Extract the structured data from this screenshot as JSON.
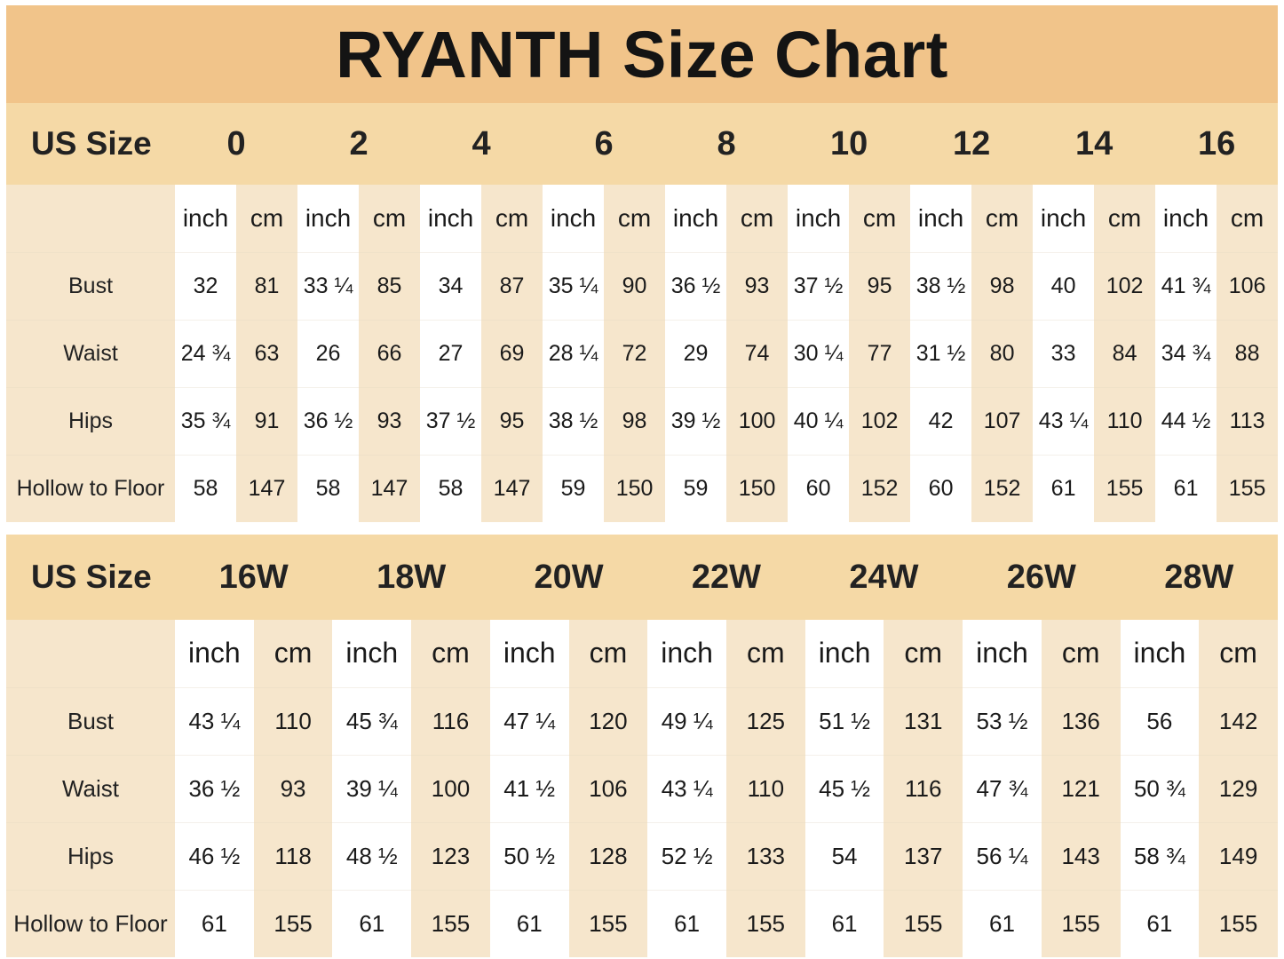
{
  "title": "RYANTH Size Chart",
  "tables": [
    {
      "id": "regular",
      "corner_label": "US Size",
      "sizes": [
        "0",
        "2",
        "4",
        "6",
        "8",
        "10",
        "12",
        "14",
        "16"
      ],
      "unit_labels": {
        "inch": "inch",
        "cm": "cm"
      },
      "rows": [
        {
          "label": "Bust",
          "inch": [
            "32",
            "33 ¼",
            "34",
            "35 ¼",
            "36 ½",
            "37 ½",
            "38 ½",
            "40",
            "41 ¾"
          ],
          "cm": [
            "81",
            "85",
            "87",
            "90",
            "93",
            "95",
            "98",
            "102",
            "106"
          ]
        },
        {
          "label": "Waist",
          "inch": [
            "24 ¾",
            "26",
            "27",
            "28 ¼",
            "29",
            "30 ¼",
            "31 ½",
            "33",
            "34 ¾"
          ],
          "cm": [
            "63",
            "66",
            "69",
            "72",
            "74",
            "77",
            "80",
            "84",
            "88"
          ]
        },
        {
          "label": "Hips",
          "inch": [
            "35 ¾",
            "36 ½",
            "37 ½",
            "38 ½",
            "39 ½",
            "40 ¼",
            "42",
            "43 ¼",
            "44 ½"
          ],
          "cm": [
            "91",
            "93",
            "95",
            "98",
            "100",
            "102",
            "107",
            "110",
            "113"
          ]
        },
        {
          "label": "Hollow to Floor",
          "inch": [
            "58",
            "58",
            "58",
            "59",
            "59",
            "60",
            "60",
            "61",
            "61"
          ],
          "cm": [
            "147",
            "147",
            "147",
            "150",
            "150",
            "152",
            "152",
            "155",
            "155"
          ]
        }
      ]
    },
    {
      "id": "plus",
      "corner_label": "US Size",
      "sizes": [
        "16W",
        "18W",
        "20W",
        "22W",
        "24W",
        "26W",
        "28W"
      ],
      "unit_labels": {
        "inch": "inch",
        "cm": "cm"
      },
      "rows": [
        {
          "label": "Bust",
          "inch": [
            "43 ¼",
            "45 ¾",
            "47 ¼",
            "49 ¼",
            "51 ½",
            "53 ½",
            "56"
          ],
          "cm": [
            "110",
            "116",
            "120",
            "125",
            "131",
            "136",
            "142"
          ]
        },
        {
          "label": "Waist",
          "inch": [
            "36 ½",
            "39 ¼",
            "41 ½",
            "43 ¼",
            "45 ½",
            "47 ¾",
            "50 ¾"
          ],
          "cm": [
            "93",
            "100",
            "106",
            "110",
            "116",
            "121",
            "129"
          ]
        },
        {
          "label": "Hips",
          "inch": [
            "46 ½",
            "48 ½",
            "50 ½",
            "52 ½",
            "54",
            "56 ¼",
            "58 ¾"
          ],
          "cm": [
            "118",
            "123",
            "128",
            "133",
            "137",
            "143",
            "149"
          ]
        },
        {
          "label": "Hollow to Floor",
          "inch": [
            "61",
            "61",
            "61",
            "61",
            "61",
            "61",
            "61"
          ],
          "cm": [
            "155",
            "155",
            "155",
            "155",
            "155",
            "155",
            "155"
          ]
        }
      ]
    }
  ]
}
